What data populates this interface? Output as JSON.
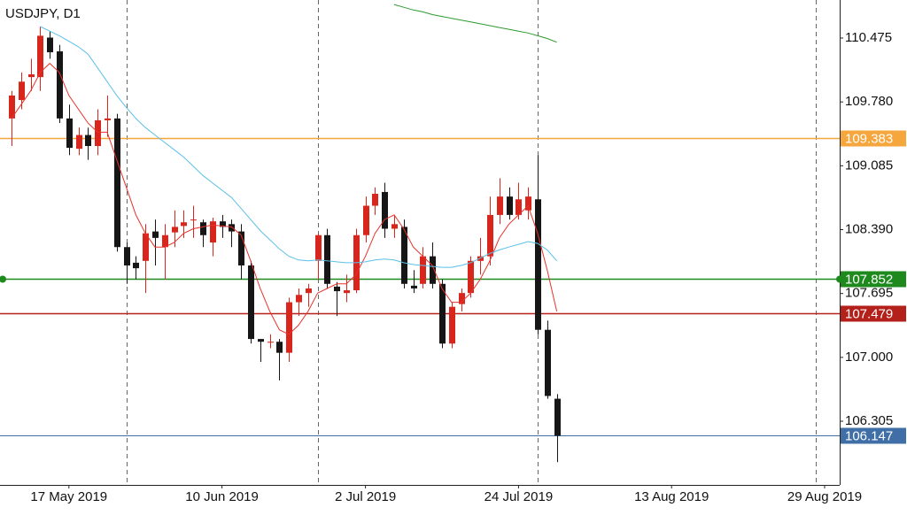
{
  "chart_data": {
    "type": "candlestick",
    "title": "USDJPY, D1",
    "categories": [
      null,
      null,
      null,
      null,
      null,
      null,
      "17 May 2019",
      null,
      null,
      null,
      null,
      null,
      null,
      null,
      null,
      null,
      null,
      null,
      null,
      null,
      null,
      null,
      "10 Jun 2019",
      null,
      null,
      null,
      null,
      null,
      null,
      null,
      null,
      null,
      null,
      null,
      null,
      null,
      null,
      "2 Jul 2019",
      null,
      null,
      null,
      null,
      null,
      null,
      null,
      null,
      null,
      null,
      null,
      null,
      null,
      null,
      null,
      "24 Jul 2019",
      null,
      null,
      null,
      null,
      null,
      null,
      null,
      null,
      null,
      null,
      null,
      null,
      null,
      null,
      null,
      "13 Aug 2019",
      null,
      null,
      null,
      null,
      null,
      null,
      null,
      null,
      null,
      null,
      null,
      null,
      null,
      null,
      null,
      "29 Aug 2019",
      null,
      null
    ],
    "open": [
      109.6,
      109.8,
      110.05,
      110.05,
      110.48,
      110.33,
      109.6,
      109.27,
      109.42,
      109.3,
      109.58,
      109.6,
      108.2,
      108.03,
      108.05,
      108.37,
      108.2,
      108.36,
      108.43,
      108.5,
      108.47,
      108.25,
      108.48,
      108.45,
      108.37,
      108.0,
      107.2,
      107.16,
      107.17,
      107.05,
      107.6,
      107.7,
      108.05,
      108.33,
      107.77,
      107.7,
      107.73,
      108.33,
      108.65,
      108.8,
      108.4,
      108.42,
      107.78,
      107.8,
      108.1,
      107.8,
      107.15,
      107.58,
      107.7,
      108.05,
      108.1,
      108.55,
      108.75,
      108.55,
      108.6,
      108.72,
      107.3,
      106.55,
      null,
      null,
      null,
      null,
      null,
      null,
      null,
      null,
      null,
      null,
      null,
      null,
      null,
      null,
      null,
      null,
      null,
      null,
      null,
      null,
      null,
      null,
      null,
      null,
      null,
      null,
      null,
      null,
      null,
      null
    ],
    "high": [
      109.9,
      110.1,
      110.25,
      110.6,
      110.55,
      110.4,
      109.75,
      109.5,
      109.5,
      109.7,
      109.85,
      109.65,
      108.25,
      108.1,
      108.45,
      108.5,
      108.45,
      108.6,
      108.6,
      108.65,
      108.5,
      108.52,
      108.55,
      108.5,
      108.45,
      108.05,
      107.2,
      107.25,
      107.2,
      107.65,
      107.75,
      107.8,
      108.35,
      108.4,
      107.82,
      107.9,
      108.4,
      108.75,
      108.85,
      108.9,
      108.55,
      108.5,
      107.95,
      108.2,
      108.25,
      107.85,
      107.6,
      107.75,
      108.1,
      108.3,
      108.75,
      108.95,
      108.85,
      108.9,
      108.85,
      109.2,
      107.4,
      106.6,
      null,
      null,
      null,
      null,
      null,
      null,
      null,
      null,
      null,
      null,
      null,
      null,
      null,
      null,
      null,
      null,
      null,
      null,
      null,
      null,
      null,
      null,
      null,
      null,
      null,
      null,
      null,
      null,
      null,
      null
    ],
    "low": [
      109.3,
      109.7,
      109.9,
      109.9,
      110.25,
      109.55,
      109.2,
      109.2,
      109.15,
      109.2,
      109.4,
      108.15,
      107.8,
      107.85,
      107.7,
      108.0,
      107.85,
      108.2,
      108.3,
      108.3,
      108.2,
      108.1,
      108.3,
      108.2,
      107.85,
      107.15,
      106.95,
      107.1,
      106.75,
      106.95,
      107.45,
      107.55,
      107.85,
      107.75,
      107.45,
      107.6,
      107.7,
      108.25,
      108.55,
      108.3,
      108.3,
      107.75,
      107.7,
      107.75,
      107.75,
      107.1,
      107.1,
      107.5,
      107.65,
      107.9,
      108.0,
      108.45,
      108.5,
      108.5,
      108.5,
      107.25,
      106.55,
      105.86,
      null,
      null,
      null,
      null,
      null,
      null,
      null,
      null,
      null,
      null,
      null,
      null,
      null,
      null,
      null,
      null,
      null,
      null,
      null,
      null,
      null,
      null,
      null,
      null,
      null,
      null,
      null,
      null,
      null,
      null
    ],
    "close": [
      109.85,
      110.0,
      110.08,
      110.5,
      110.32,
      109.6,
      109.28,
      109.42,
      109.3,
      109.58,
      109.6,
      108.2,
      108.0,
      107.97,
      108.35,
      108.3,
      108.33,
      108.42,
      108.47,
      108.5,
      108.33,
      108.48,
      108.42,
      108.37,
      108.0,
      107.2,
      107.17,
      107.17,
      107.05,
      107.6,
      107.68,
      107.75,
      108.33,
      107.8,
      107.72,
      107.73,
      108.33,
      108.65,
      108.78,
      108.4,
      108.45,
      107.8,
      107.75,
      108.1,
      107.8,
      107.15,
      107.55,
      107.7,
      108.05,
      108.1,
      108.55,
      108.75,
      108.55,
      108.72,
      108.75,
      107.3,
      106.58,
      106.147,
      null,
      null,
      null,
      null,
      null,
      null,
      null,
      null,
      null,
      null,
      null,
      null,
      null,
      null,
      null,
      null,
      null,
      null,
      null,
      null,
      null,
      null,
      null,
      null,
      null,
      null,
      null,
      null,
      null,
      null
    ],
    "up_color": "#d8261d",
    "down_color": "#161616",
    "lines": [
      {
        "color": "#e8322b",
        "values": [
          109.6,
          109.75,
          109.9,
          110.1,
          110.2,
          110.1,
          109.85,
          109.7,
          109.55,
          109.45,
          109.45,
          109.15,
          108.85,
          108.55,
          108.35,
          108.2,
          108.2,
          108.25,
          108.35,
          108.4,
          108.42,
          108.44,
          108.43,
          108.42,
          108.33,
          108.05,
          107.75,
          107.5,
          107.3,
          107.25,
          107.35,
          107.5,
          107.7,
          107.75,
          107.8,
          107.8,
          107.9,
          108.1,
          108.35,
          108.5,
          108.55,
          108.4,
          108.2,
          108.1,
          108.0,
          107.75,
          107.6,
          107.6,
          107.7,
          107.85,
          108.05,
          108.3,
          108.45,
          108.55,
          108.65,
          108.35,
          107.95,
          107.5,
          null,
          null,
          null,
          null,
          null,
          null,
          null,
          null,
          null,
          null,
          null,
          null,
          null,
          null,
          null,
          null,
          null,
          null,
          null,
          null,
          null,
          null,
          null,
          null,
          null,
          null,
          null,
          null,
          null,
          null
        ]
      },
      {
        "color": "#5bc0e6",
        "values": [
          null,
          null,
          null,
          110.6,
          110.55,
          110.5,
          110.44,
          110.38,
          110.3,
          110.15,
          110.0,
          109.85,
          109.72,
          109.6,
          109.5,
          109.42,
          109.34,
          109.26,
          109.18,
          109.08,
          108.98,
          108.9,
          108.82,
          108.74,
          108.62,
          108.5,
          108.38,
          108.28,
          108.18,
          108.1,
          108.06,
          108.05,
          108.06,
          108.05,
          108.04,
          108.03,
          108.03,
          108.04,
          108.06,
          108.07,
          108.06,
          108.03,
          108.01,
          108.0,
          107.99,
          107.98,
          107.98,
          108.0,
          108.03,
          108.08,
          108.13,
          108.17,
          108.2,
          108.23,
          108.26,
          108.24,
          108.17,
          108.05,
          null,
          null,
          null,
          null,
          null,
          null,
          null,
          null,
          null,
          null,
          null,
          null,
          null,
          null,
          null,
          null,
          null,
          null,
          null,
          null,
          null,
          null,
          null,
          null,
          null,
          null,
          null,
          null,
          null,
          null
        ]
      },
      {
        "color": "#2e9a2e",
        "values": [
          null,
          null,
          null,
          null,
          null,
          null,
          null,
          null,
          null,
          null,
          null,
          null,
          null,
          null,
          null,
          null,
          null,
          null,
          null,
          null,
          null,
          null,
          null,
          null,
          null,
          null,
          null,
          null,
          null,
          null,
          null,
          null,
          null,
          null,
          null,
          null,
          null,
          null,
          null,
          null,
          110.84,
          110.81,
          110.78,
          110.76,
          110.73,
          110.71,
          110.69,
          110.67,
          110.65,
          110.63,
          110.61,
          110.59,
          110.57,
          110.55,
          110.53,
          110.5,
          110.47,
          110.43,
          null,
          null,
          null,
          null,
          null,
          null,
          null,
          null,
          null,
          null,
          null,
          null,
          null,
          null,
          null,
          null,
          null,
          null,
          null,
          null,
          null,
          null,
          null,
          null,
          null,
          null,
          null,
          null,
          null,
          null
        ]
      }
    ],
    "levels": [
      {
        "value": 109.383,
        "color": "#f5a63d"
      },
      {
        "value": 107.852,
        "color": "#1e8a1e"
      },
      {
        "value": 107.479,
        "color": "#b3211a"
      },
      {
        "value": 106.147,
        "color": "#3f6fa6"
      }
    ],
    "ylim": [
      105.612,
      110.889
    ],
    "yticks": [
      110.475,
      {
        "value": 109.78,
        "label": "109.780"
      },
      109.085,
      {
        "value": 108.39,
        "label": "108.390"
      },
      107.695,
      {
        "value": 107,
        "label": "107.000"
      },
      106.305
    ]
  }
}
